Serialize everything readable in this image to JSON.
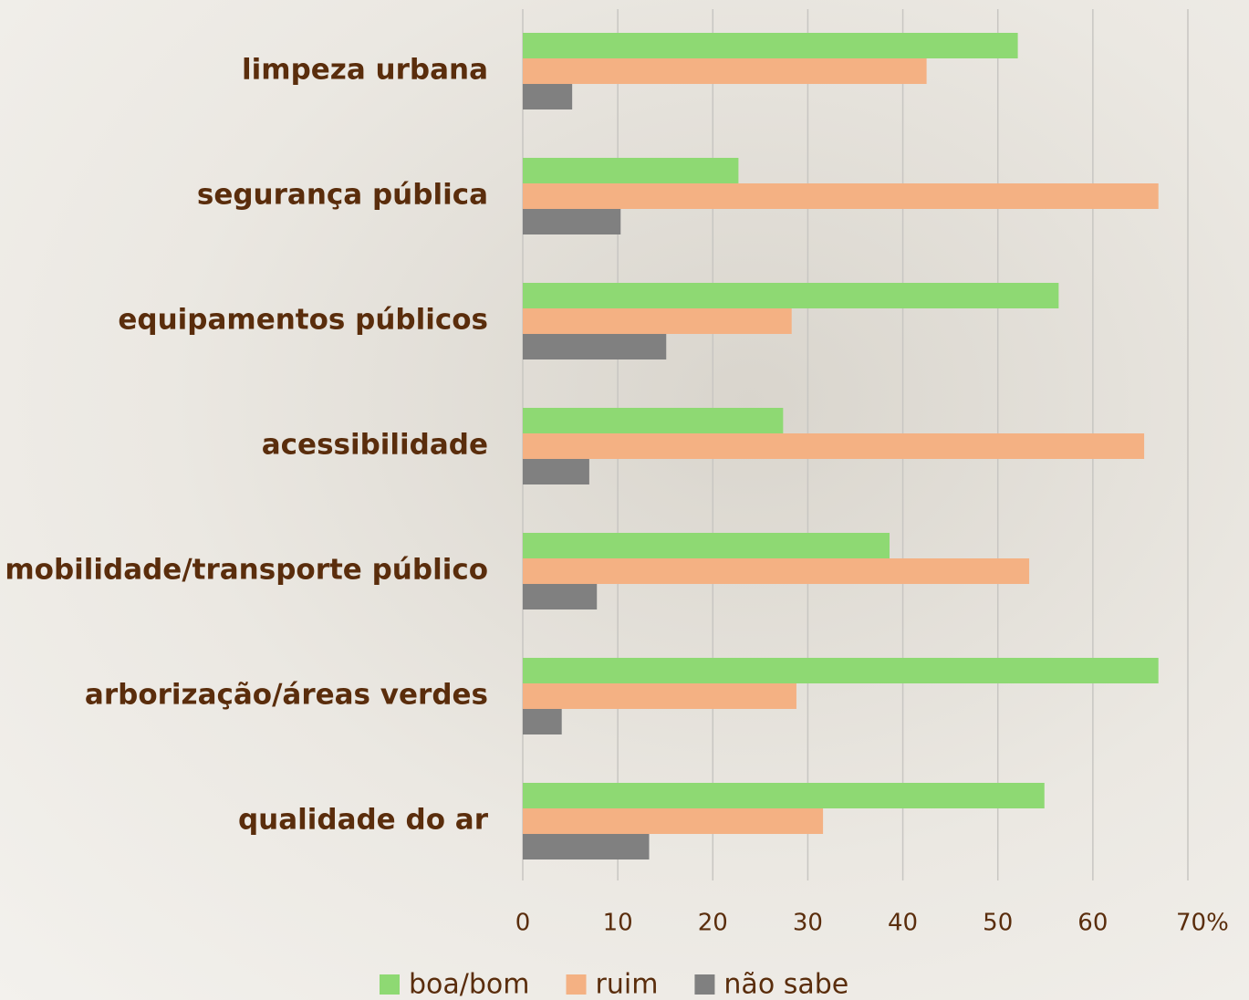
{
  "chart_data": {
    "type": "hbar",
    "categories": [
      "limpeza urbana",
      "segurança pública",
      "equipamentos públicos",
      "acessibilidade",
      "mobilidade/transporte público",
      "arborização/áreas verdes",
      "qualidade do ar"
    ],
    "series": [
      {
        "name": "boa/bom",
        "color": "#8ed973",
        "values": [
          52.1,
          22.7,
          56.4,
          27.4,
          38.6,
          66.9,
          54.9
        ]
      },
      {
        "name": "ruim",
        "color": "#f4b183",
        "values": [
          42.5,
          66.9,
          28.3,
          65.4,
          53.3,
          28.8,
          31.6
        ]
      },
      {
        "name": "não sabe",
        "color": "#808080",
        "values": [
          5.2,
          10.3,
          15.1,
          7.0,
          7.8,
          4.1,
          13.3
        ]
      }
    ],
    "xlim": [
      0,
      70
    ],
    "xticks": [
      0,
      10,
      20,
      30,
      40,
      50,
      60,
      {
        "value": 70,
        "label": "70%"
      }
    ],
    "grid": true,
    "legend": "bottom"
  }
}
